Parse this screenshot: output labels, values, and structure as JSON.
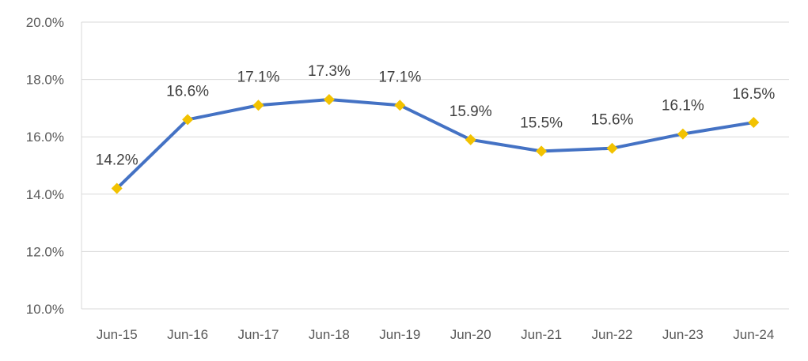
{
  "chart_data": {
    "type": "line",
    "title": "",
    "xlabel": "",
    "ylabel": "",
    "categories": [
      "Jun-15",
      "Jun-16",
      "Jun-17",
      "Jun-18",
      "Jun-19",
      "Jun-20",
      "Jun-21",
      "Jun-22",
      "Jun-23",
      "Jun-24"
    ],
    "series": [
      {
        "values": [
          14.2,
          16.6,
          17.1,
          17.3,
          17.1,
          15.9,
          15.5,
          15.6,
          16.1,
          16.5
        ],
        "labels": [
          "14.2%",
          "16.6%",
          "17.1%",
          "17.3%",
          "17.1%",
          "15.9%",
          "15.5%",
          "15.6%",
          "16.1%",
          "16.5%"
        ],
        "line_color": "#4472C4",
        "marker_color": "#F2C200",
        "marker": "diamond"
      }
    ],
    "ylim": [
      10,
      20
    ],
    "yticks": [
      10,
      12,
      14,
      16,
      18,
      20
    ],
    "ytick_labels": [
      "10.0%",
      "12.0%",
      "14.0%",
      "16.0%",
      "18.0%",
      "20.0%"
    ],
    "grid": true,
    "legend": "none"
  }
}
